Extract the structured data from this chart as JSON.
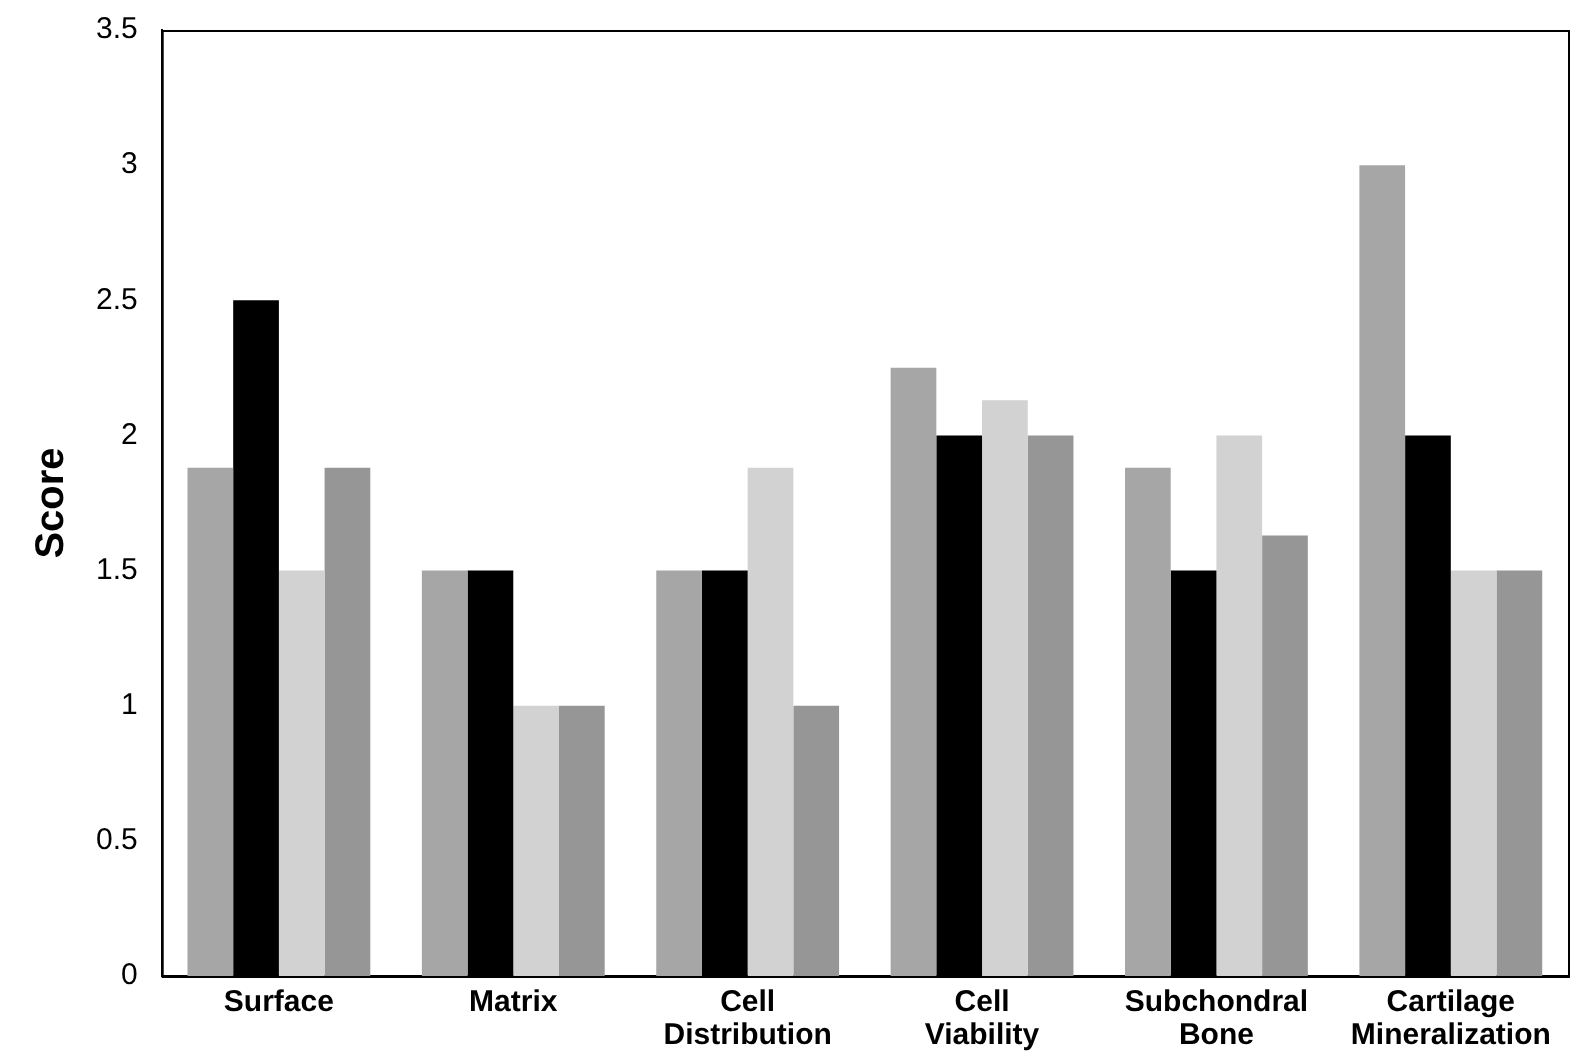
{
  "chart_data": {
    "type": "bar",
    "ylabel": "Score",
    "categories": [
      "Surface",
      "Matrix",
      "Cell Distribution",
      "Cell Viability",
      "Subchondral Bone",
      "Cartilage Mineralization"
    ],
    "series": [
      {
        "color": "#a6a6a6",
        "values": [
          1.88,
          1.5,
          1.5,
          2.25,
          1.88,
          3
        ]
      },
      {
        "color": "#000000",
        "values": [
          2.5,
          1.5,
          1.5,
          2,
          1.5,
          2
        ]
      },
      {
        "color": "#d2d2d2",
        "values": [
          1.5,
          1,
          1.88,
          2.13,
          2,
          1.5
        ]
      },
      {
        "color": "#969696",
        "values": [
          1.88,
          1,
          1,
          2,
          1.63,
          1.5
        ]
      }
    ],
    "ylim": [
      0,
      3.5
    ],
    "yticks": [
      0,
      0.5,
      1,
      1.5,
      2,
      2.5,
      3,
      3.5
    ],
    "grid": false,
    "legend": false
  }
}
